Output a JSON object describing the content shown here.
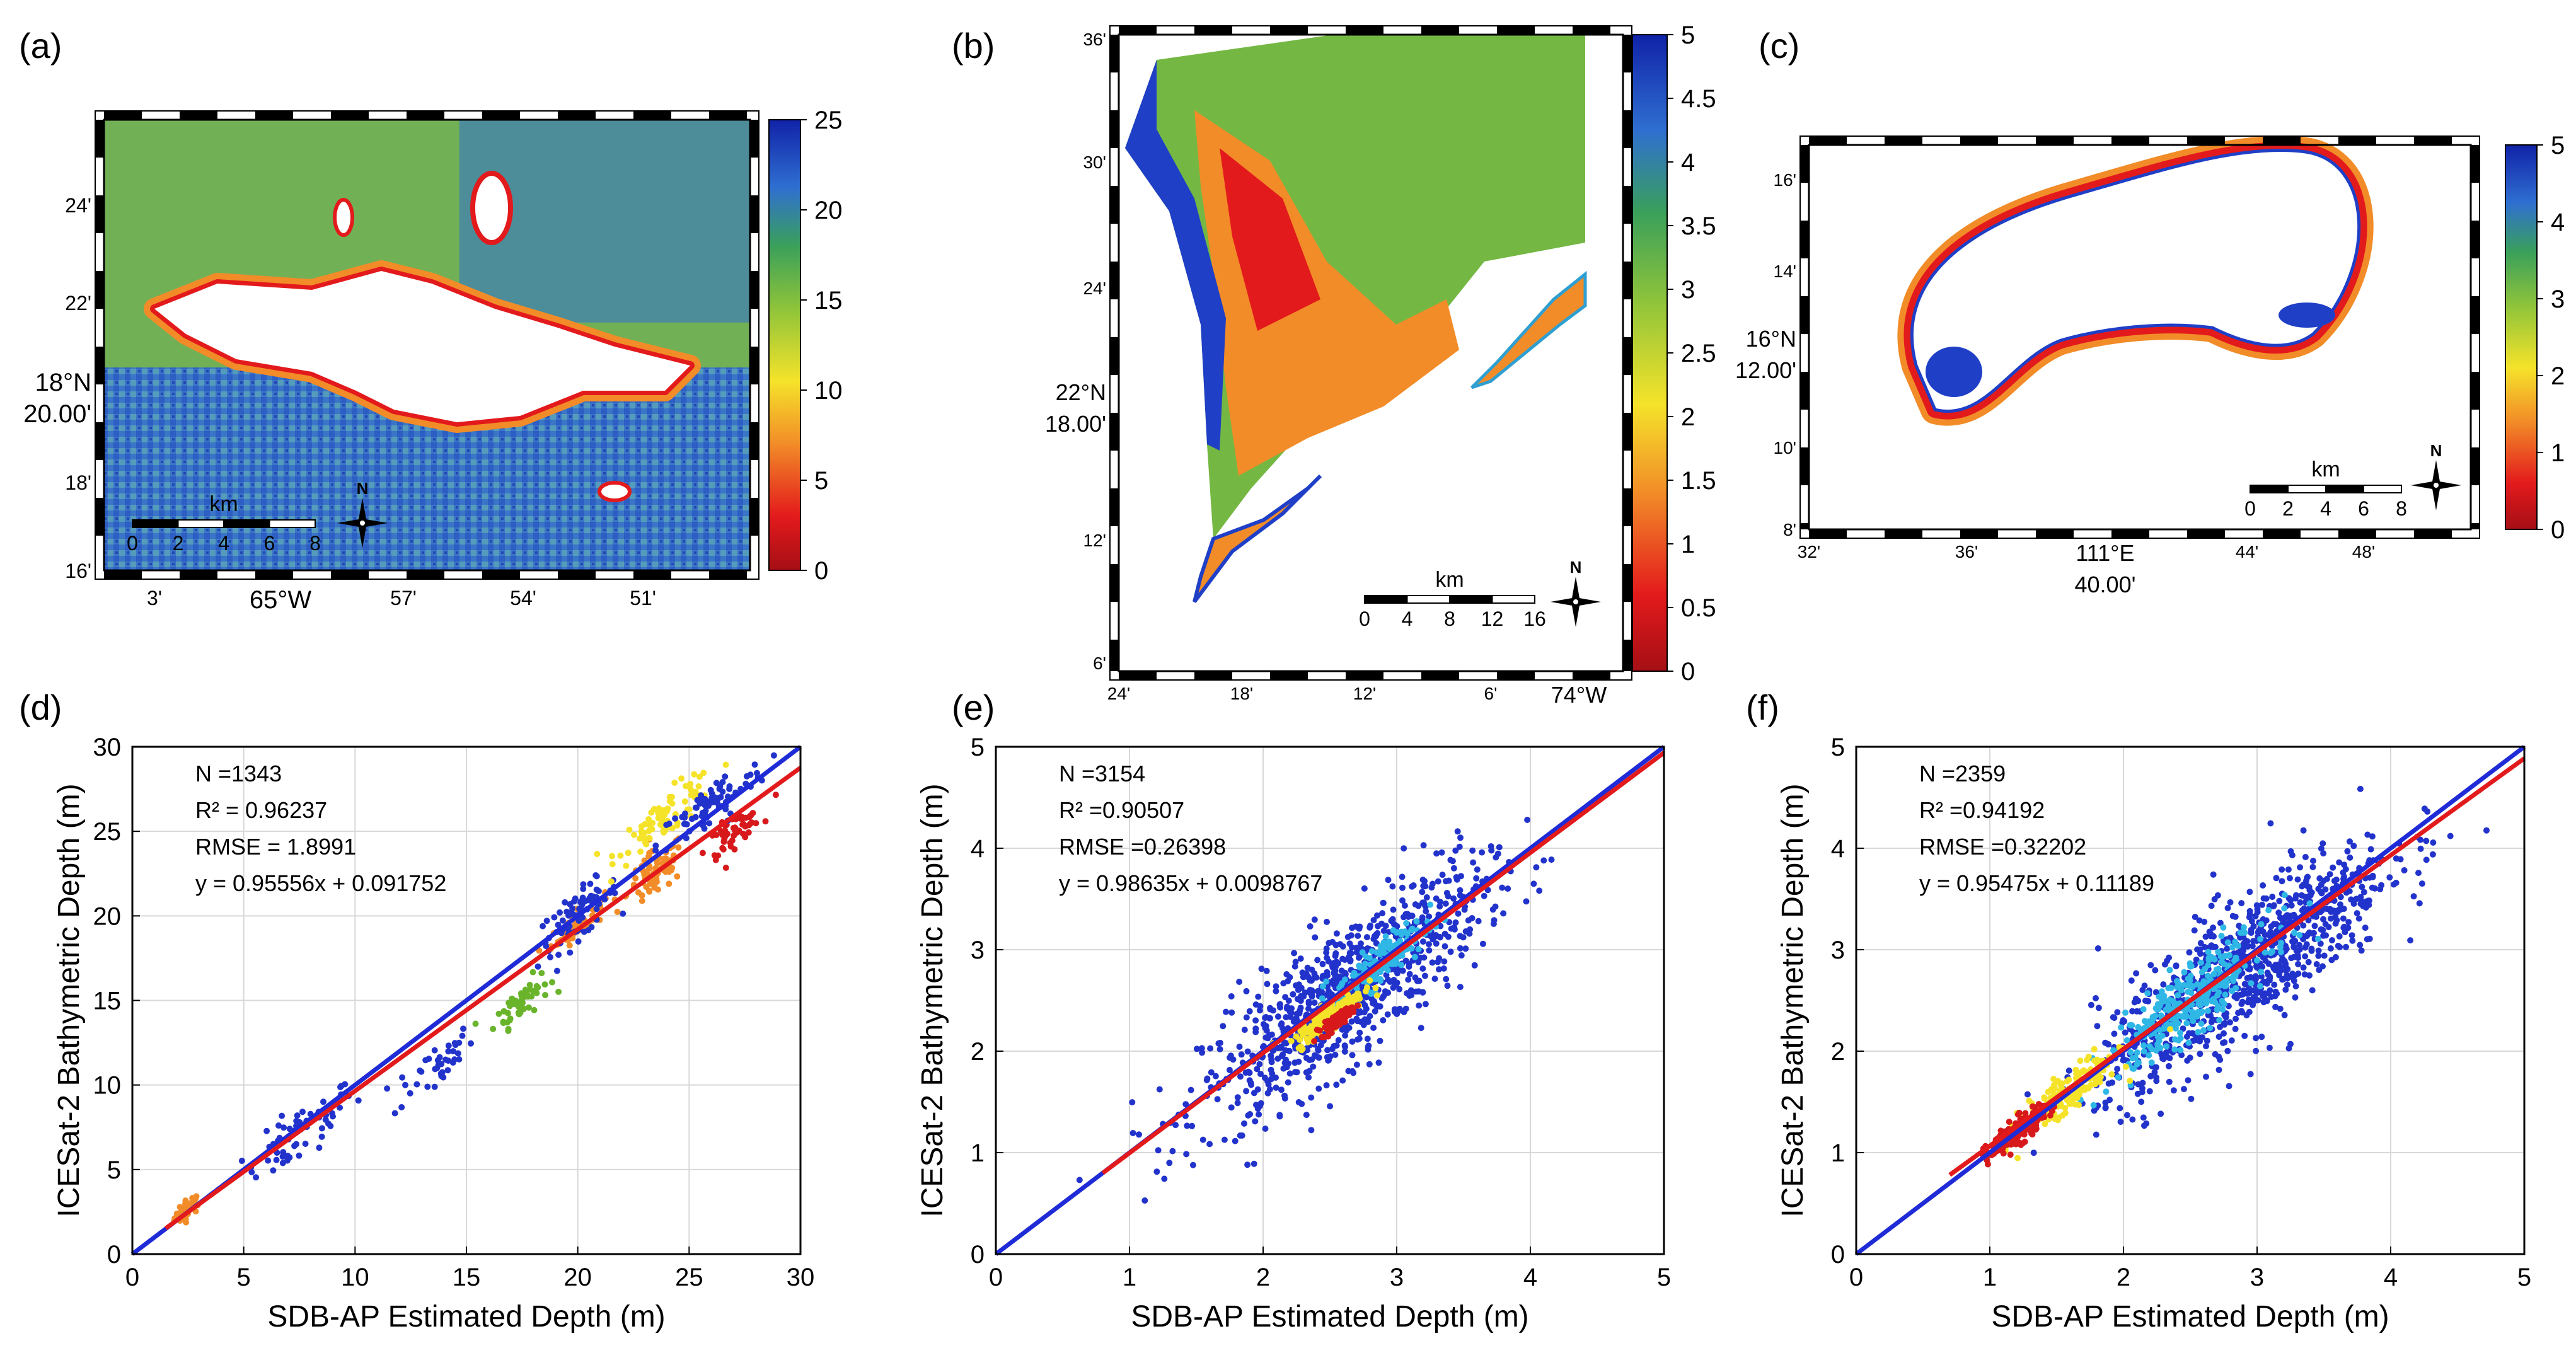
{
  "panel_labels": [
    "(a)",
    "(b)",
    "(c)",
    "(d)",
    "(e)",
    "(f)"
  ],
  "colors": {
    "red": "#d7191c",
    "orange": "#f28c28",
    "yellow": "#f5e32a",
    "green": "#6ab42c",
    "blue": "#2233cc",
    "darkblue": "#0a1a9a",
    "fit_line": "#e31a1c",
    "one_to_one": "#1f2bd6"
  },
  "maps": [
    {
      "id": "a",
      "kind": "island",
      "lat_ticks": [
        "24'",
        "22'",
        "18'",
        "16'"
      ],
      "lat_main": [
        "18°N",
        "20.00'"
      ],
      "lon_ticks": [
        "3'",
        "57'",
        "54'",
        "51'"
      ],
      "lon_main": "65°W",
      "colorbar_ticks": [
        "25",
        "20",
        "15",
        "10",
        "5",
        "0"
      ],
      "scale_unit": "km",
      "scale_ticks": [
        "0",
        "2",
        "4",
        "6",
        "8"
      ],
      "north": "N"
    },
    {
      "id": "b",
      "kind": "coast",
      "lat_ticks": [
        "36'",
        "30'",
        "24'",
        "12'",
        "6'"
      ],
      "lat_main": [
        "22°N",
        "18.00'"
      ],
      "lon_ticks": [
        "24'",
        "18'",
        "12'",
        "6'"
      ],
      "lon_main": "74°W",
      "colorbar_ticks": [
        "5",
        "4.5",
        "4",
        "3.5",
        "3",
        "2.5",
        "2",
        "1.5",
        "1",
        "0.5",
        "0"
      ],
      "scale_unit": "km",
      "scale_ticks": [
        "0",
        "4",
        "8",
        "12",
        "16"
      ],
      "north": "N"
    },
    {
      "id": "c",
      "kind": "atoll",
      "lat_ticks": [
        "16'",
        "14'",
        "10'",
        "8'"
      ],
      "lat_main": [
        "16°N",
        "12.00'"
      ],
      "lon_ticks": [
        "32'",
        "36'",
        "44'",
        "48'"
      ],
      "lon_main": [
        "111°E",
        "40.00'"
      ],
      "colorbar_ticks": [
        "5",
        "4",
        "3",
        "2",
        "1",
        "0"
      ],
      "scale_unit": "km",
      "scale_ticks": [
        "0",
        "2",
        "4",
        "6",
        "8"
      ],
      "north": "N"
    }
  ],
  "chart_data": [
    {
      "type": "scatter",
      "id": "d",
      "xlabel": "SDB-AP Estimated Depth (m)",
      "ylabel": "ICESat-2 Bathymetric Depth (m)",
      "xlim": [
        0,
        30
      ],
      "ylim": [
        0,
        30
      ],
      "xticks": [
        0,
        5,
        10,
        15,
        20,
        25,
        30
      ],
      "yticks": [
        0,
        5,
        10,
        15,
        20,
        25,
        30
      ],
      "grid": true,
      "stats": [
        "N =1343",
        "R² = 0.96237",
        "RMSE = 1.8991",
        "y = 0.95556x + 0.091752"
      ],
      "fit": {
        "slope": 0.95556,
        "intercept": 0.091752,
        "x_range": [
          1.5,
          30
        ]
      },
      "one_to_one": {
        "x_range": [
          0,
          30
        ]
      },
      "clusters": [
        {
          "x": 2.5,
          "y": 2.7,
          "sx": 0.6,
          "sy": 0.8,
          "n": 40,
          "color": "orange"
        },
        {
          "x": 7.5,
          "y": 7.0,
          "sx": 2.5,
          "sy": 2.2,
          "n": 60,
          "color": "blue"
        },
        {
          "x": 13.5,
          "y": 11.0,
          "sx": 1.8,
          "sy": 2.0,
          "n": 40,
          "color": "blue"
        },
        {
          "x": 17.5,
          "y": 15.0,
          "sx": 1.2,
          "sy": 1.5,
          "n": 60,
          "color": "green"
        },
        {
          "x": 20.0,
          "y": 19.5,
          "sx": 1.2,
          "sy": 1.2,
          "n": 60,
          "color": "orange"
        },
        {
          "x": 20.0,
          "y": 20.0,
          "sx": 1.8,
          "sy": 2.0,
          "n": 80,
          "color": "blue"
        },
        {
          "x": 23.5,
          "y": 22.5,
          "sx": 1.3,
          "sy": 2.0,
          "n": 80,
          "color": "orange"
        },
        {
          "x": 24.0,
          "y": 26.0,
          "sx": 2.2,
          "sy": 1.8,
          "n": 80,
          "color": "yellow"
        },
        {
          "x": 27.0,
          "y": 25.0,
          "sx": 1.2,
          "sy": 1.3,
          "n": 60,
          "color": "red"
        },
        {
          "x": 26.0,
          "y": 26.5,
          "sx": 2.4,
          "sy": 2.0,
          "n": 80,
          "color": "blue"
        }
      ]
    },
    {
      "type": "scatter",
      "id": "e",
      "xlabel": "SDB-AP Estimated Depth (m)",
      "ylabel": "ICESat-2 Bathymetric Depth (m)",
      "xlim": [
        0,
        5
      ],
      "ylim": [
        0,
        5
      ],
      "xticks": [
        0,
        1,
        2,
        3,
        4,
        5
      ],
      "yticks": [
        0,
        1,
        2,
        3,
        4,
        5
      ],
      "grid": true,
      "stats": [
        "N =3154",
        "R² =0.90507",
        "RMSE =0.26398",
        "y = 0.98635x + 0.0098767"
      ],
      "fit": {
        "slope": 0.98635,
        "intercept": 0.0098767,
        "x_range": [
          0.8,
          5
        ]
      },
      "one_to_one": {
        "x_range": [
          0,
          5
        ]
      },
      "clusters": [
        {
          "x": 2.6,
          "y": 2.55,
          "sx": 1.05,
          "sy": 1.0,
          "n": 900,
          "color": "blue"
        },
        {
          "x": 2.9,
          "y": 2.9,
          "sx": 0.35,
          "sy": 0.3,
          "n": 160,
          "color": "cyan"
        },
        {
          "x": 2.5,
          "y": 2.35,
          "sx": 0.25,
          "sy": 0.18,
          "n": 180,
          "color": "yellow"
        },
        {
          "x": 2.55,
          "y": 2.3,
          "sx": 0.12,
          "sy": 0.09,
          "n": 120,
          "color": "red"
        }
      ]
    },
    {
      "type": "scatter",
      "id": "f",
      "xlabel": "SDB-AP Estimated Depth (m)",
      "ylabel": "ICESat-2 Bathymetric Depth (m)",
      "xlim": [
        0,
        5
      ],
      "ylim": [
        0,
        5
      ],
      "xticks": [
        0,
        1,
        2,
        3,
        4,
        5
      ],
      "yticks": [
        0,
        1,
        2,
        3,
        4,
        5
      ],
      "grid": true,
      "stats": [
        "N =2359",
        "R² =0.94192",
        "RMSE =0.32202",
        "y = 0.95475x + 0.11189"
      ],
      "fit": {
        "slope": 0.95475,
        "intercept": 0.11189,
        "x_range": [
          0.7,
          5
        ]
      },
      "one_to_one": {
        "x_range": [
          0,
          5
        ]
      },
      "clusters": [
        {
          "x": 2.9,
          "y": 2.8,
          "sx": 1.1,
          "sy": 1.0,
          "n": 900,
          "color": "blue"
        },
        {
          "x": 2.5,
          "y": 2.5,
          "sx": 0.6,
          "sy": 0.5,
          "n": 300,
          "color": "cyan"
        },
        {
          "x": 1.6,
          "y": 1.6,
          "sx": 0.35,
          "sy": 0.3,
          "n": 160,
          "color": "yellow"
        },
        {
          "x": 1.2,
          "y": 1.2,
          "sx": 0.22,
          "sy": 0.18,
          "n": 200,
          "color": "red"
        }
      ]
    }
  ]
}
